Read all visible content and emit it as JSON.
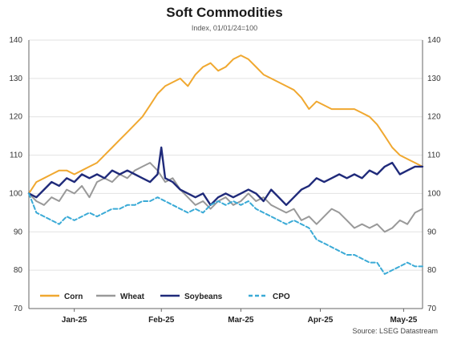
{
  "chart_data": {
    "type": "line",
    "title": "Soft Commodities",
    "subtitle": "Index, 01/01/24=100",
    "source": "Source: LSEG Datastream",
    "ylim": [
      70,
      140
    ],
    "yticks": [
      70,
      80,
      90,
      100,
      110,
      120,
      130,
      140
    ],
    "ytick_labels": [
      "70",
      "80",
      "90",
      "100",
      "110",
      "120",
      "130",
      "140"
    ],
    "right_axis": true,
    "xlim": [
      0,
      104
    ],
    "xticks": [
      {
        "label": "Jan-25",
        "x": 12
      },
      {
        "label": "Feb-25",
        "x": 35
      },
      {
        "label": "Mar-25",
        "x": 56
      },
      {
        "label": "Apr-25",
        "x": 77
      },
      {
        "label": "May-25",
        "x": 99
      }
    ],
    "legend_position": "bottom-left",
    "series": [
      {
        "name": "Corn",
        "color": "#f0a830",
        "style": "solid",
        "x": [
          0,
          2,
          4,
          6,
          8,
          10,
          12,
          14,
          16,
          18,
          20,
          22,
          24,
          26,
          28,
          30,
          32,
          34,
          36,
          38,
          40,
          42,
          44,
          46,
          48,
          50,
          52,
          54,
          56,
          58,
          60,
          62,
          64,
          66,
          68,
          70,
          72,
          74,
          76,
          78,
          80,
          82,
          84,
          86,
          88,
          90,
          92,
          94,
          96,
          98,
          100,
          102,
          104
        ],
        "values": [
          100,
          103,
          104,
          105,
          106,
          106,
          105,
          106,
          107,
          108,
          110,
          112,
          114,
          116,
          118,
          120,
          123,
          126,
          128,
          129,
          130,
          128,
          131,
          133,
          134,
          132,
          133,
          135,
          136,
          135,
          133,
          131,
          130,
          129,
          128,
          127,
          125,
          122,
          124,
          123,
          122,
          122,
          122,
          122,
          121,
          120,
          118,
          115,
          112,
          110,
          109,
          108,
          107
        ]
      },
      {
        "name": "Wheat",
        "color": "#999999",
        "style": "solid",
        "x": [
          0,
          2,
          4,
          6,
          8,
          10,
          12,
          14,
          16,
          18,
          20,
          22,
          24,
          26,
          28,
          30,
          32,
          34,
          36,
          38,
          40,
          42,
          44,
          46,
          48,
          50,
          52,
          54,
          56,
          58,
          60,
          62,
          64,
          66,
          68,
          70,
          72,
          74,
          76,
          78,
          80,
          82,
          84,
          86,
          88,
          90,
          92,
          94,
          96,
          98,
          100,
          102,
          104
        ],
        "values": [
          100,
          98,
          97,
          99,
          98,
          101,
          100,
          102,
          99,
          103,
          104,
          103,
          105,
          104,
          106,
          107,
          108,
          106,
          103,
          104,
          101,
          99,
          97,
          98,
          96,
          98,
          99,
          97,
          98,
          100,
          98,
          99,
          97,
          96,
          95,
          96,
          93,
          94,
          92,
          94,
          96,
          95,
          93,
          91,
          92,
          91,
          92,
          90,
          91,
          93,
          92,
          95,
          96
        ]
      },
      {
        "name": "Soybeans",
        "color": "#1f2a7a",
        "style": "solid",
        "x": [
          0,
          2,
          4,
          6,
          8,
          10,
          12,
          14,
          16,
          18,
          20,
          22,
          24,
          26,
          28,
          30,
          32,
          34,
          35,
          36,
          38,
          40,
          42,
          44,
          46,
          48,
          50,
          52,
          54,
          56,
          58,
          60,
          62,
          64,
          66,
          68,
          70,
          72,
          74,
          76,
          78,
          80,
          82,
          84,
          86,
          88,
          90,
          92,
          94,
          96,
          98,
          100,
          102,
          104
        ],
        "values": [
          100,
          99,
          101,
          103,
          102,
          104,
          103,
          105,
          104,
          105,
          104,
          106,
          105,
          106,
          105,
          104,
          103,
          105,
          112,
          104,
          103,
          101,
          100,
          99,
          100,
          97,
          99,
          100,
          99,
          100,
          101,
          100,
          98,
          101,
          99,
          97,
          99,
          101,
          102,
          104,
          103,
          104,
          105,
          104,
          105,
          104,
          106,
          105,
          107,
          108,
          105,
          106,
          107,
          107
        ]
      },
      {
        "name": "CPO",
        "color": "#3aaad6",
        "style": "dashed",
        "x": [
          0,
          2,
          4,
          6,
          8,
          10,
          12,
          14,
          16,
          18,
          20,
          22,
          24,
          26,
          28,
          30,
          32,
          34,
          36,
          38,
          40,
          42,
          44,
          46,
          48,
          50,
          52,
          54,
          56,
          58,
          60,
          62,
          64,
          66,
          68,
          70,
          72,
          74,
          76,
          78,
          80,
          82,
          84,
          86,
          88,
          90,
          92,
          94,
          96,
          98,
          100,
          102,
          104
        ],
        "values": [
          100,
          95,
          94,
          93,
          92,
          94,
          93,
          94,
          95,
          94,
          95,
          96,
          96,
          97,
          97,
          98,
          98,
          99,
          98,
          97,
          96,
          95,
          96,
          95,
          97,
          98,
          97,
          98,
          97,
          98,
          96,
          95,
          94,
          93,
          92,
          93,
          92,
          91,
          88,
          87,
          86,
          85,
          84,
          84,
          83,
          82,
          82,
          79,
          80,
          81,
          82,
          81,
          81
        ]
      }
    ]
  }
}
